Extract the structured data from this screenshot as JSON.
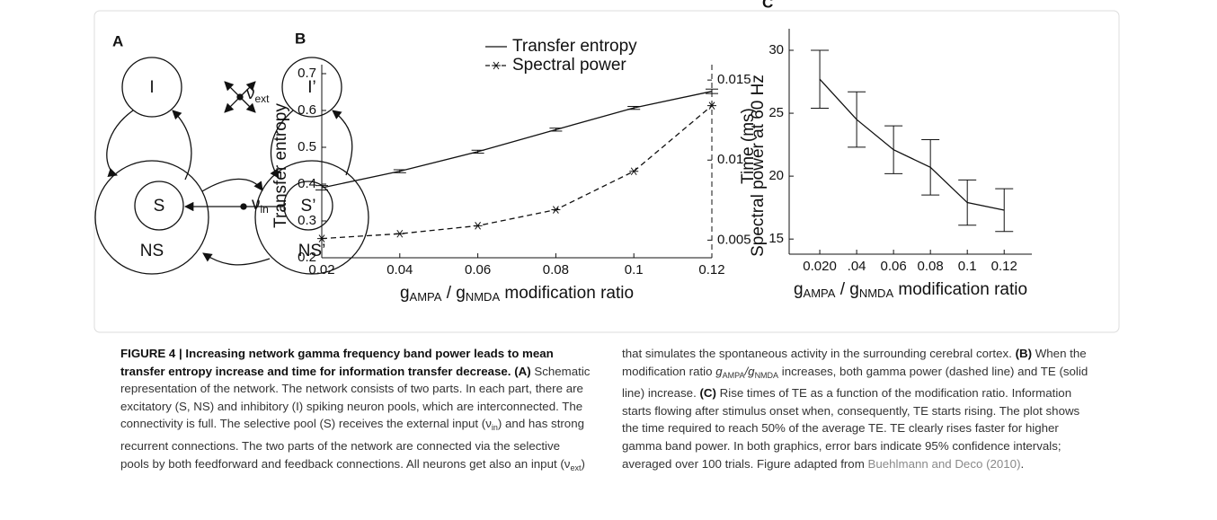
{
  "diagram": {
    "label": "A",
    "nodes": [
      "I",
      "I’",
      "S",
      "NS",
      "S’",
      "NS’"
    ],
    "inputs": [
      {
        "symbol": "ν",
        "sub": "ext"
      },
      {
        "symbol": "ν",
        "sub": "in"
      }
    ]
  },
  "chart_data": [
    {
      "label": "B",
      "type": "line",
      "x": [
        0.02,
        0.04,
        0.06,
        0.08,
        0.1,
        0.12
      ],
      "xlim": [
        0.02,
        0.12
      ],
      "xticks": [
        0.02,
        0.04,
        0.06,
        0.08,
        0.1,
        0.12
      ],
      "x_label": [
        "g",
        "AMPA",
        " / g",
        "NMDA",
        " modification ratio"
      ],
      "y_label": "Transfer entropy",
      "y2_label": "Spectral power at 60 Hz",
      "ylim": [
        0.2,
        0.7
      ],
      "yticks": [
        0.2,
        0.3,
        0.4,
        0.5,
        0.6,
        0.7
      ],
      "y2lim": [
        0.0039,
        0.0154
      ],
      "y2ticks": [
        0.005,
        0.01,
        0.015
      ],
      "legend": "top",
      "series": [
        {
          "name": "Transfer entropy",
          "color": "#111",
          "values": [
            0.39,
            0.435,
            0.488,
            0.548,
            0.607,
            0.652
          ],
          "errors": [
            0.006,
            0.004,
            0.004,
            0.004,
            0.004,
            0.006
          ]
        },
        {
          "name": "Spectral power",
          "color": "#111",
          "axis": "y2",
          "dash": true,
          "marker": "star",
          "values": [
            0.0051,
            0.0054,
            0.0059,
            0.0069,
            0.0093,
            0.0134
          ]
        }
      ]
    },
    {
      "label": "C",
      "type": "line",
      "x": [
        0.02,
        0.04,
        0.06,
        0.08,
        0.1,
        0.12
      ],
      "xlim": [
        0.0034,
        0.135
      ],
      "xticks": [
        {
          "value": 0.02,
          "label": "0.020"
        },
        {
          "value": 0.04,
          "label": ".04"
        },
        0.06,
        0.08,
        0.1,
        0.12
      ],
      "x_label": [
        "g",
        "AMPA",
        " / g",
        "NMDA",
        " modification ratio"
      ],
      "y_label": "Time (ms)",
      "ylim": [
        13.8,
        31
      ],
      "yticks": [
        15,
        20,
        25,
        30
      ],
      "series": [
        {
          "color": "#111",
          "values": [
            27.7,
            24.5,
            22.1,
            20.7,
            17.9,
            17.3
          ],
          "errors": [
            2.3,
            2.2,
            1.9,
            2.2,
            1.8,
            1.7
          ]
        }
      ]
    }
  ],
  "caption": {
    "segments": [
      {
        "t": "FIGURE 4 | Increasing network gamma frequency band power leads to mean transfer entropy increase and time for information transfer decrease.",
        "s": "b"
      },
      {
        "t": " (A)",
        "s": "b"
      },
      {
        "t": " Schematic representation of the network. The network consists of two parts. In each part, there are excitatory (S, NS) and inhibitory (I) spiking neuron pools, which are interconnected. The connectivity is full. The selective pool (S) receives the external input (ν"
      },
      {
        "t": "in",
        "s": "sub"
      },
      {
        "t": ") and has strong recurrent connections. The two parts of the network are connected via the selective pools by both feedforward and feedback connections. All neurons get also an input (ν"
      },
      {
        "t": "ext",
        "s": "sub"
      },
      {
        "t": ") that simulates the spontaneous activity in the surrounding cerebral cortex. "
      },
      {
        "t": "(B)",
        "s": "b"
      },
      {
        "t": " When the modification ratio "
      },
      {
        "t": "g",
        "s": "i"
      },
      {
        "t": "AMPA",
        "s": "sub"
      },
      {
        "t": "/g",
        "s": "i"
      },
      {
        "t": "NMDA",
        "s": "sub"
      },
      {
        "t": " increases, both gamma power (dashed line) and TE (solid line) increase. "
      },
      {
        "t": "(C)",
        "s": "b"
      },
      {
        "t": " Rise times of TE as a function of the modification ratio. Information starts flowing after stimulus onset when, consequently, TE starts rising. The plot shows the time required to reach 50% of the average TE. TE clearly rises faster for higher gamma band power. In both graphics, error bars indicate 95% confidence intervals; averaged over 100 trials. Figure adapted from "
      },
      {
        "t": "Buehlmann and Deco (2010)",
        "s": "link"
      },
      {
        "t": "."
      }
    ]
  }
}
